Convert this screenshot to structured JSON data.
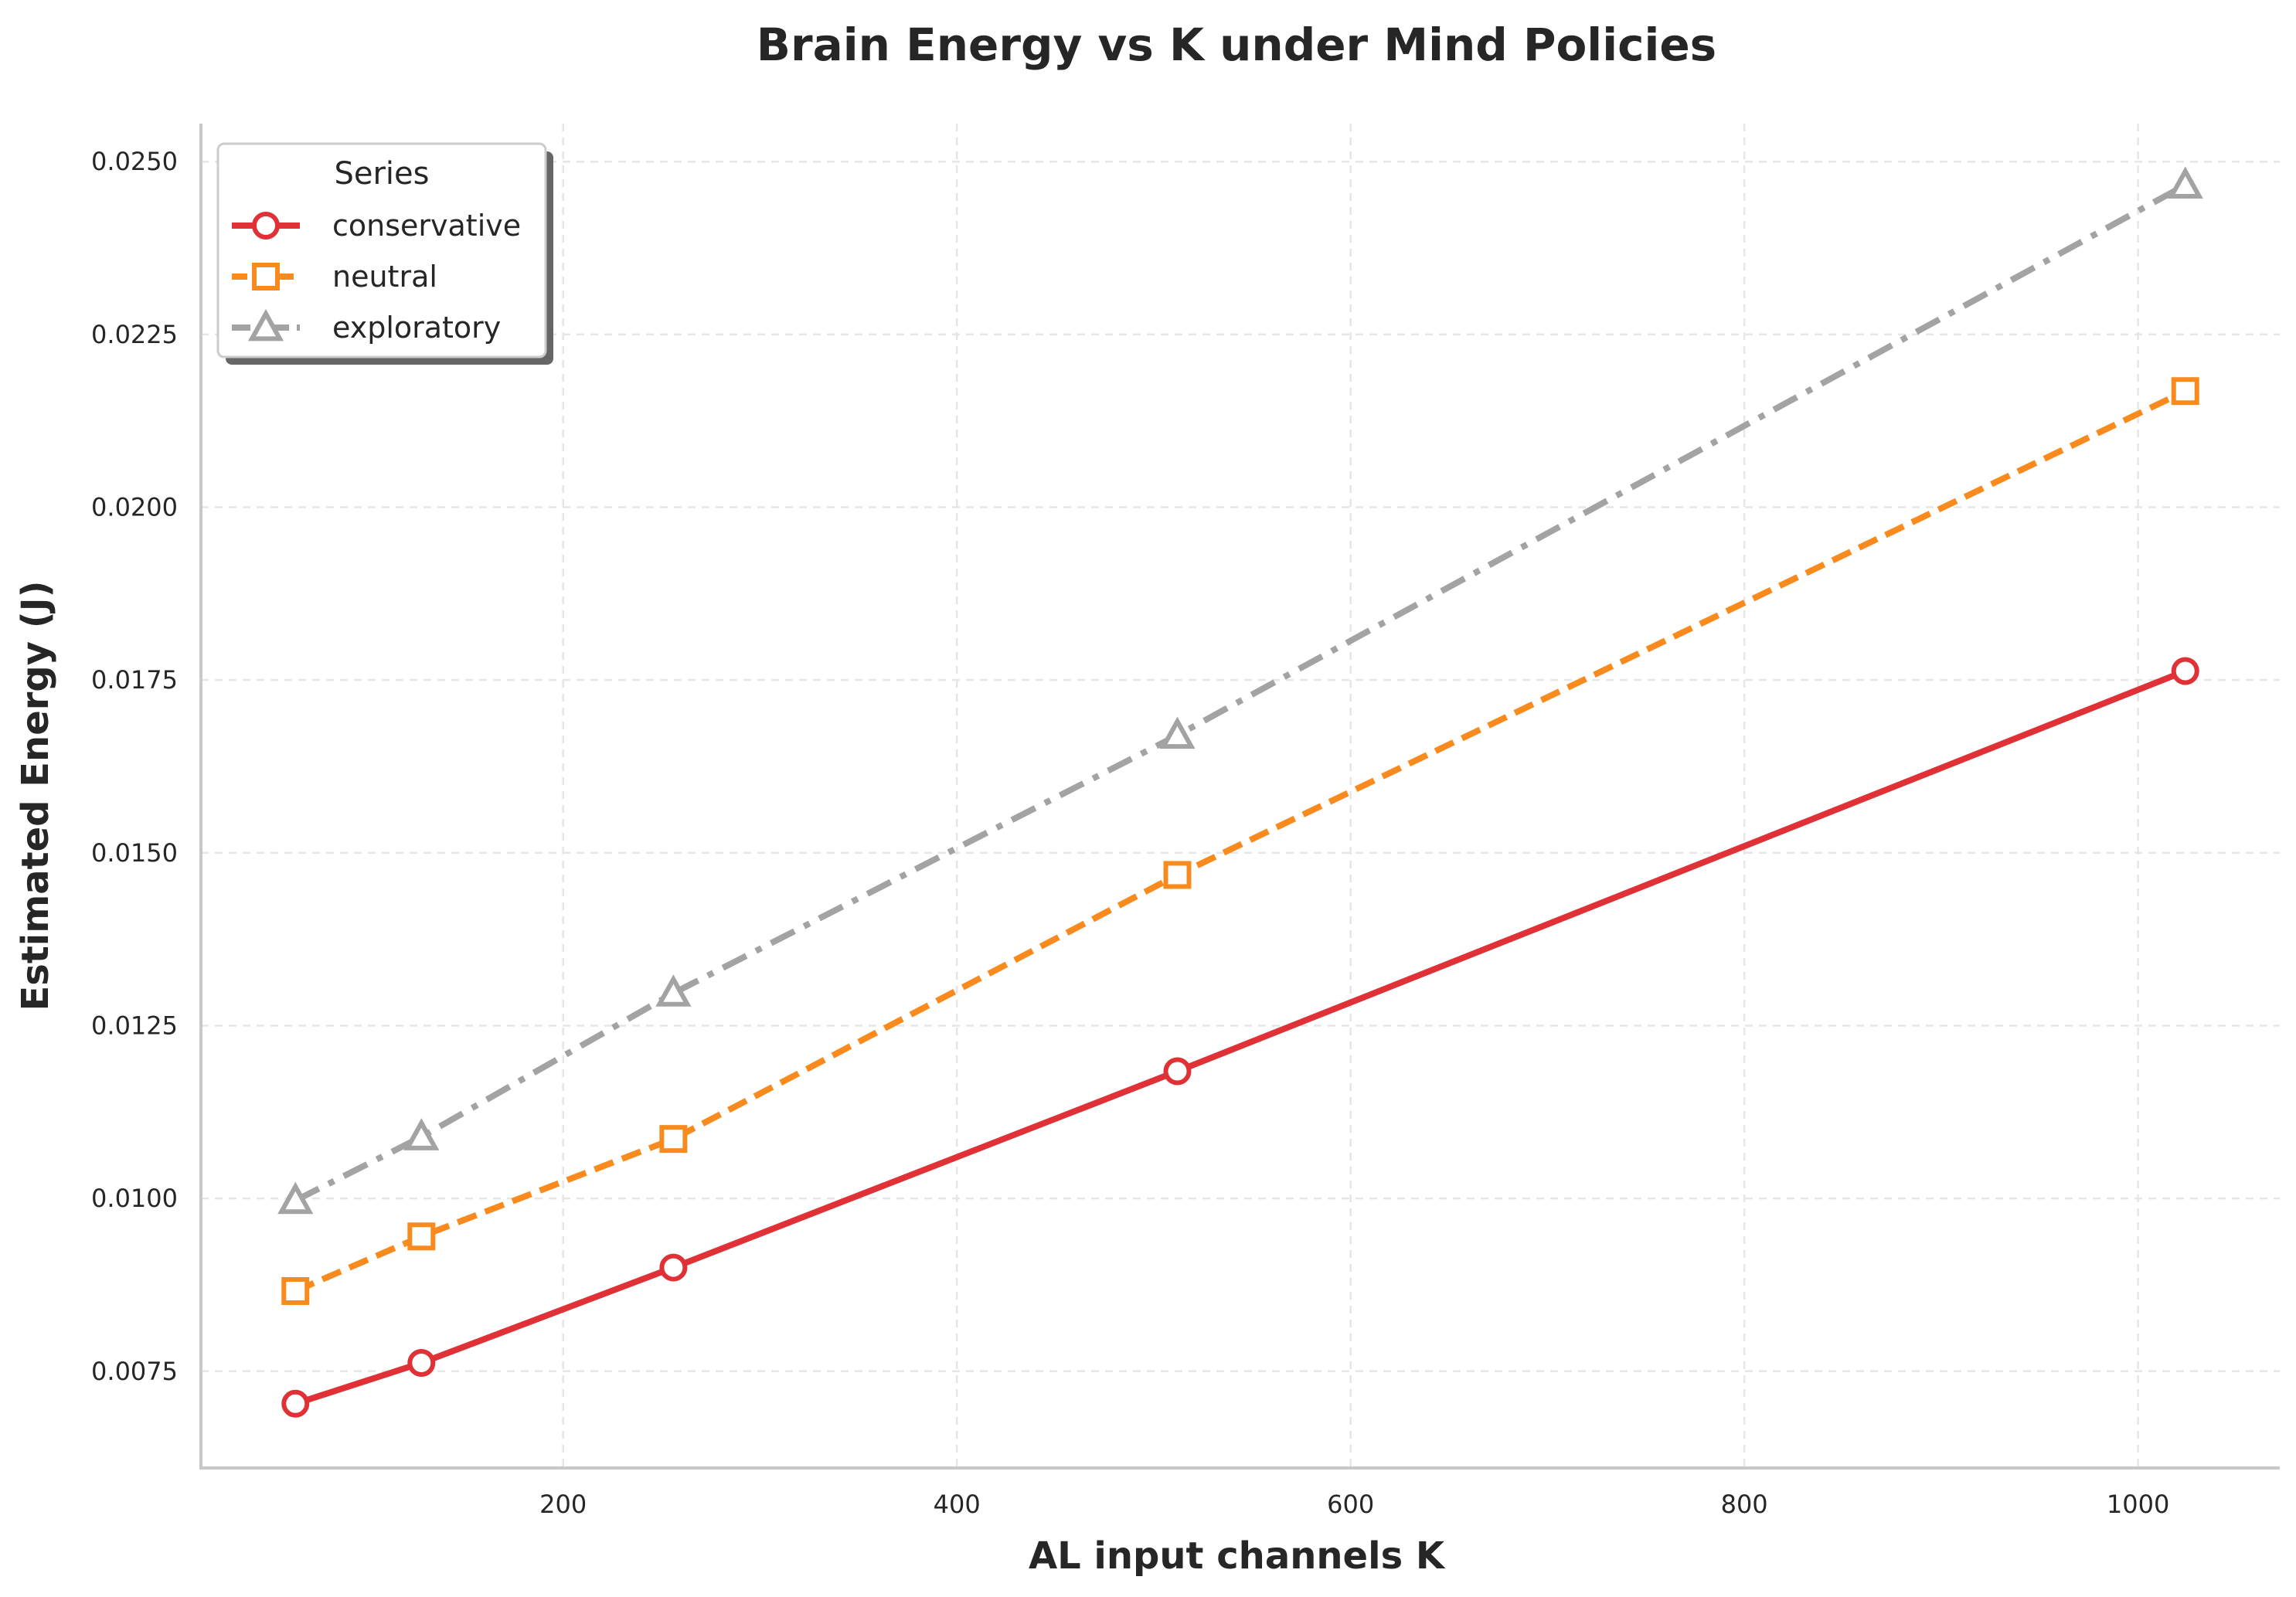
{
  "chart_data": {
    "type": "line",
    "title": "Brain Energy vs K under Mind Policies",
    "xlabel": "AL input channels K",
    "ylabel": "Estimated Energy (J)",
    "xlim": [
      16,
      1072
    ],
    "ylim": [
      0.0061,
      0.02555
    ],
    "xticks": [
      200,
      400,
      600,
      800,
      1000
    ],
    "xtick_labels": [
      "200",
      "400",
      "600",
      "800",
      "1000"
    ],
    "yticks": [
      0.0075,
      0.01,
      0.0125,
      0.015,
      0.0175,
      0.02,
      0.0225,
      0.025
    ],
    "ytick_labels": [
      "0.0075",
      "0.0100",
      "0.0125",
      "0.0150",
      "0.0175",
      "0.0200",
      "0.0225",
      "0.0250"
    ],
    "grid": true,
    "legend": {
      "title": "Series",
      "position": "top-left"
    },
    "x": [
      64,
      128,
      256,
      512,
      1024
    ],
    "series": [
      {
        "name": "conservative",
        "values": [
          0.00703,
          0.00762,
          0.009,
          0.01184,
          0.01763
        ],
        "color": "#e03236",
        "marker": "circle",
        "dash": "solid"
      },
      {
        "name": "neutral",
        "values": [
          0.00866,
          0.00945,
          0.01086,
          0.01468,
          0.02168
        ],
        "color": "#f98b1e",
        "marker": "square",
        "dash": "dashed"
      },
      {
        "name": "exploratory",
        "values": [
          0.00997,
          0.01089,
          0.01297,
          0.0167,
          0.02466
        ],
        "color": "#a3a3a3",
        "marker": "triangle",
        "dash": "dashdot"
      }
    ]
  }
}
